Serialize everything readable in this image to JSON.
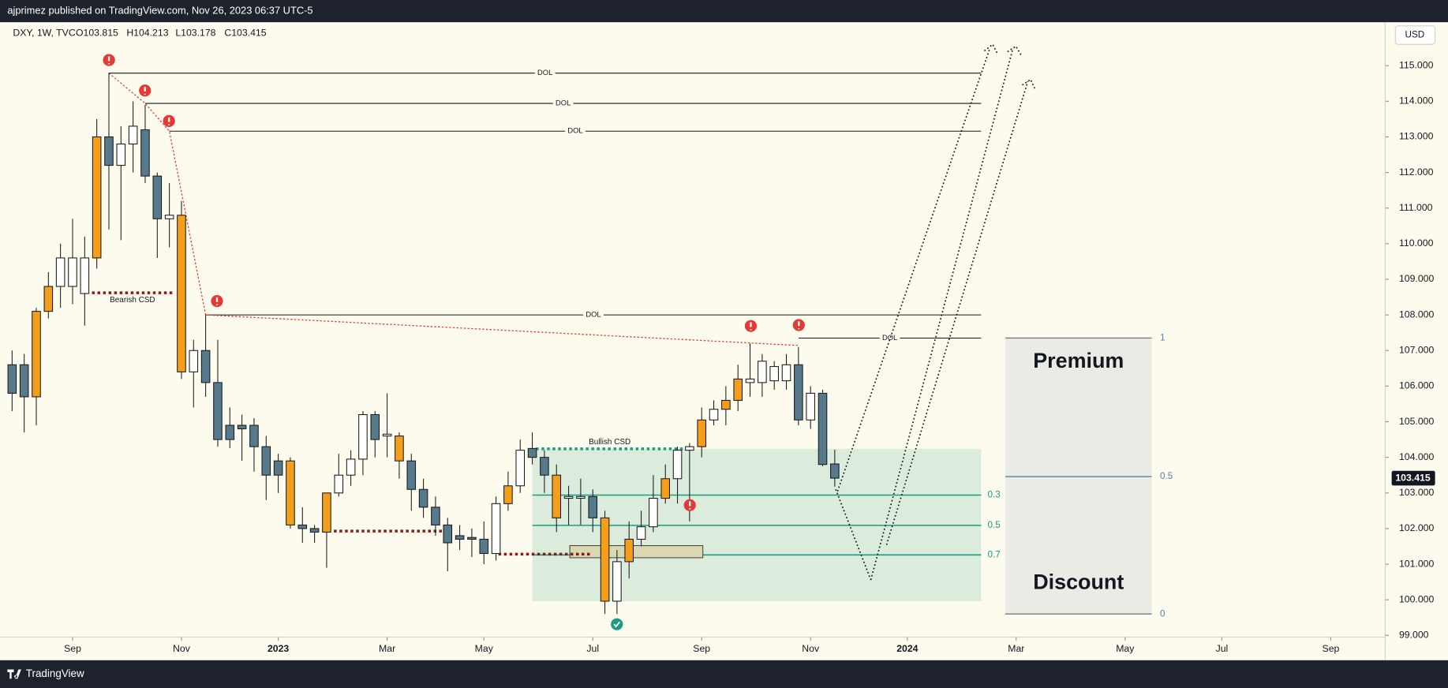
{
  "header": {
    "byline": "ajprimez published on TradingView.com, Nov 26, 2023 06:37 UTC-5"
  },
  "chart_data": {
    "type": "candlestick",
    "symbol": "DXY, 1W, TVC",
    "ohlc_labels": [
      "O103.815",
      "H104.213",
      "L103.178",
      "C103.415"
    ],
    "currency": "USD",
    "last_price": {
      "value": 103.415,
      "label": "103.415"
    },
    "candles": {
      "open": [
        106.6,
        106.6,
        105.7,
        108.1,
        108.8,
        108.8,
        108.6,
        109.6,
        113.0,
        112.2,
        112.8,
        113.2,
        111.9,
        110.7,
        110.8,
        106.4,
        107.0,
        106.1,
        104.9,
        104.9,
        104.9,
        104.3,
        103.9,
        103.9,
        102.1,
        102.0,
        101.9,
        103.0,
        103.5,
        103.95,
        105.2,
        104.6,
        104.6,
        103.9,
        103.1,
        102.6,
        102.1,
        101.8,
        101.75,
        101.7,
        101.3,
        102.7,
        103.2,
        104.25,
        104.0,
        103.5,
        102.9,
        102.85,
        102.9,
        102.3,
        99.96,
        101.07,
        101.7,
        102.05,
        102.85,
        103.4,
        104.2,
        104.3,
        105.05,
        105.35,
        105.6,
        106.1,
        106.1,
        106.15,
        106.15,
        106.6,
        105.05,
        105.8,
        103.815
      ],
      "high": [
        107.0,
        106.9,
        108.2,
        109.2,
        110.0,
        110.7,
        110.2,
        113.5,
        114.8,
        113.3,
        114.0,
        113.9,
        112.0,
        111.7,
        111.2,
        107.3,
        108.0,
        107.3,
        105.4,
        105.2,
        105.1,
        104.6,
        104.1,
        104.0,
        102.6,
        102.1,
        103.0,
        104.1,
        104.2,
        105.3,
        105.3,
        105.8,
        104.7,
        104.1,
        103.4,
        102.9,
        102.3,
        102.1,
        102.0,
        102.2,
        102.9,
        103.6,
        104.5,
        104.7,
        104.2,
        103.8,
        103.2,
        103.4,
        103.1,
        102.5,
        101.4,
        102.2,
        102.5,
        103.5,
        103.8,
        104.3,
        104.4,
        105.4,
        105.6,
        106.0,
        106.6,
        107.2,
        106.9,
        106.7,
        106.9,
        107.1,
        106.0,
        105.9,
        104.213
      ],
      "low": [
        105.3,
        104.7,
        104.9,
        107.9,
        108.2,
        108.3,
        107.7,
        109.3,
        110.4,
        110.1,
        112.0,
        111.7,
        109.6,
        109.9,
        106.2,
        105.4,
        105.7,
        104.3,
        104.26,
        103.9,
        103.6,
        102.8,
        103.0,
        102.0,
        101.6,
        101.6,
        100.9,
        102.9,
        103.2,
        103.5,
        104.0,
        104.0,
        103.4,
        102.5,
        102.3,
        101.8,
        100.8,
        101.4,
        101.2,
        101.0,
        101.1,
        102.5,
        103.0,
        103.8,
        103.0,
        101.9,
        102.1,
        102.1,
        101.9,
        99.6,
        99.6,
        100.6,
        101.5,
        101.9,
        102.7,
        102.7,
        102.2,
        104.0,
        104.9,
        104.9,
        105.3,
        105.7,
        105.7,
        105.9,
        105.9,
        104.9,
        104.8,
        103.75,
        103.178
      ],
      "close": [
        105.8,
        105.7,
        108.1,
        108.8,
        109.6,
        109.6,
        109.6,
        113.0,
        112.2,
        112.8,
        113.3,
        111.9,
        110.7,
        110.8,
        106.4,
        107.0,
        106.1,
        104.5,
        104.5,
        104.8,
        104.3,
        103.5,
        103.5,
        102.1,
        102.0,
        101.9,
        103.0,
        103.5,
        103.95,
        105.2,
        104.5,
        104.65,
        103.9,
        103.1,
        102.6,
        102.1,
        101.6,
        101.7,
        101.7,
        101.3,
        102.7,
        103.2,
        104.2,
        104.0,
        103.5,
        102.3,
        102.85,
        102.9,
        102.3,
        99.96,
        101.07,
        101.7,
        102.05,
        102.85,
        103.4,
        104.2,
        104.3,
        105.05,
        105.35,
        105.6,
        106.2,
        106.2,
        106.7,
        106.55,
        106.6,
        105.05,
        105.8,
        103.8,
        103.415
      ],
      "colors": [
        "#56798c",
        "#56798c",
        "#f59e1b",
        "#f59e1b",
        "#ffffff",
        "#ffffff",
        "#ffffff",
        "#f59e1b",
        "#56798c",
        "#ffffff",
        "#ffffff",
        "#56798c",
        "#56798c",
        "#ffffff",
        "#f59e1b",
        "#ffffff",
        "#56798c",
        "#56798c",
        "#56798c",
        "#56798c",
        "#56798c",
        "#56798c",
        "#56798c",
        "#f59e1b",
        "#56798c",
        "#56798c",
        "#f59e1b",
        "#ffffff",
        "#ffffff",
        "#ffffff",
        "#56798c",
        "#ffffff",
        "#f59e1b",
        "#56798c",
        "#56798c",
        "#56798c",
        "#56798c",
        "#56798c",
        "#56798c",
        "#56798c",
        "#ffffff",
        "#f59e1b",
        "#ffffff",
        "#56798c",
        "#56798c",
        "#f59e1b",
        "#ffffff",
        "#ffffff",
        "#56798c",
        "#f59e1b",
        "#ffffff",
        "#f59e1b",
        "#ffffff",
        "#ffffff",
        "#f59e1b",
        "#ffffff",
        "#ffffff",
        "#f59e1b",
        "#ffffff",
        "#f59e1b",
        "#f59e1b",
        "#ffffff",
        "#ffffff",
        "#ffffff",
        "#ffffff",
        "#56798c",
        "#ffffff",
        "#56798c",
        "#56798c"
      ]
    },
    "xlim": [
      -1,
      113.5
    ],
    "xticks": [
      {
        "value": 5,
        "label": "Sep"
      },
      {
        "value": 14,
        "label": "Nov"
      },
      {
        "value": 22,
        "label": "2023"
      },
      {
        "value": 31,
        "label": "Mar"
      },
      {
        "value": 39,
        "label": "May"
      },
      {
        "value": 48,
        "label": "Jul"
      },
      {
        "value": 57,
        "label": "Sep"
      },
      {
        "value": 66,
        "label": "Nov"
      },
      {
        "value": 74,
        "label": "2024"
      },
      {
        "value": 83,
        "label": "Mar"
      },
      {
        "value": 92,
        "label": "May"
      },
      {
        "value": 100,
        "label": "Jul"
      },
      {
        "value": 109,
        "label": "Sep"
      }
    ],
    "ylim": [
      98.95,
      116.22
    ],
    "yticks": [
      {
        "value": 99,
        "label": "99.000"
      },
      {
        "value": 100,
        "label": "100.000"
      },
      {
        "value": 101,
        "label": "101.000"
      },
      {
        "value": 102,
        "label": "102.000"
      },
      {
        "value": 103,
        "label": "103.000"
      },
      {
        "value": 104,
        "label": "104.000"
      },
      {
        "value": 105,
        "label": "105.000"
      },
      {
        "value": 106,
        "label": "106.000"
      },
      {
        "value": 107,
        "label": "107.000"
      },
      {
        "value": 108,
        "label": "108.000"
      },
      {
        "value": 109,
        "label": "109.000"
      },
      {
        "value": 110,
        "label": "110.000"
      },
      {
        "value": 111,
        "label": "111.000"
      },
      {
        "value": 112,
        "label": "112.000"
      },
      {
        "value": 113,
        "label": "113.000"
      },
      {
        "value": 114,
        "label": "114.000"
      },
      {
        "value": 115,
        "label": "115.000"
      }
    ],
    "dol_lines": [
      {
        "label": "DOL",
        "price": 114.79,
        "start": 8,
        "end": 80.1
      },
      {
        "label": "DOL",
        "price": 113.94,
        "start": 11,
        "end": 80.1
      },
      {
        "label": "DOL",
        "price": 113.16,
        "start": 13,
        "end": 80.1
      },
      {
        "label": "DOL",
        "price": 108.0,
        "start": 16,
        "end": 80.1
      },
      {
        "label": "DOL",
        "price": 107.35,
        "start": 65,
        "end": 80.1
      }
    ],
    "csd": [
      {
        "label": "Bearish CSD",
        "price": 108.62,
        "start": 6.6,
        "end": 13.3,
        "color": "#8b1a1a"
      },
      {
        "label": "Bullish CSD",
        "price": 104.24,
        "start": 43.3,
        "end": 55.5,
        "color": "#1a9c82"
      }
    ],
    "liquidity_lines": [
      {
        "price": 101.93,
        "start": 26.6,
        "end": 35.6,
        "color": "#8b1a1a"
      },
      {
        "price": 101.28,
        "start": 40.2,
        "end": 47.9,
        "color": "#8b1a1a"
      }
    ],
    "fib": {
      "top": 104.24,
      "bottom": 99.96,
      "start": 43.0,
      "end": 80.1,
      "color": "#1a9c82",
      "levels": [
        {
          "value": 102.94,
          "label": "0.3"
        },
        {
          "value": 102.09,
          "label": "0.5"
        },
        {
          "value": 101.26,
          "label": "0.7"
        }
      ]
    },
    "order_block": {
      "top": 101.52,
      "bottom": 101.18,
      "start": 46.1,
      "end": 57.1
    },
    "range": {
      "title_top": "Premium",
      "title_bottom": "Discount",
      "start": 82.1,
      "end": 94.2,
      "levels": [
        {
          "value": 107.35,
          "label": "1"
        },
        {
          "value": 103.46,
          "label": "0.5"
        },
        {
          "value": 99.6,
          "label": "0"
        }
      ]
    }
  },
  "footer": {
    "brand": "TradingView"
  }
}
